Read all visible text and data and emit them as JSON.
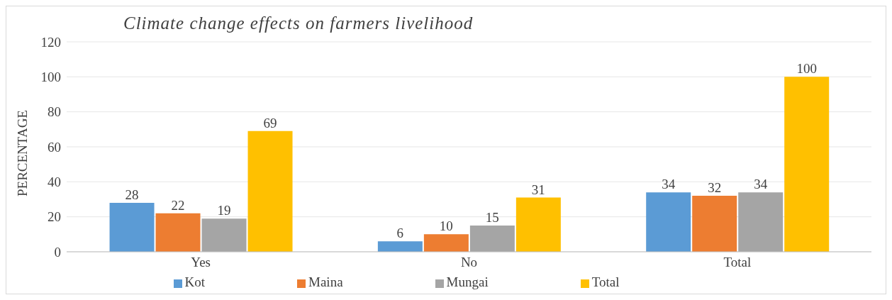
{
  "chart_data": {
    "type": "bar",
    "title": "Climate change effects on farmers livelihood",
    "ylabel": "PERCENTAGE",
    "categories": [
      "Yes",
      "No",
      "Total"
    ],
    "series": [
      {
        "name": "Kot",
        "color": "#5b9bd5",
        "values": [
          28,
          6,
          34
        ]
      },
      {
        "name": "Maina",
        "color": "#ed7d31",
        "values": [
          22,
          10,
          32
        ]
      },
      {
        "name": "Mungai",
        "color": "#a5a5a5",
        "values": [
          19,
          15,
          34
        ]
      },
      {
        "name": "Total",
        "color": "#ffc000",
        "values": [
          69,
          31,
          100
        ]
      }
    ],
    "ylim": [
      0,
      120
    ],
    "yticks": [
      0,
      20,
      40,
      60,
      80,
      100,
      120
    ],
    "grid": "y",
    "legend": "bottom",
    "data_labels": true
  }
}
